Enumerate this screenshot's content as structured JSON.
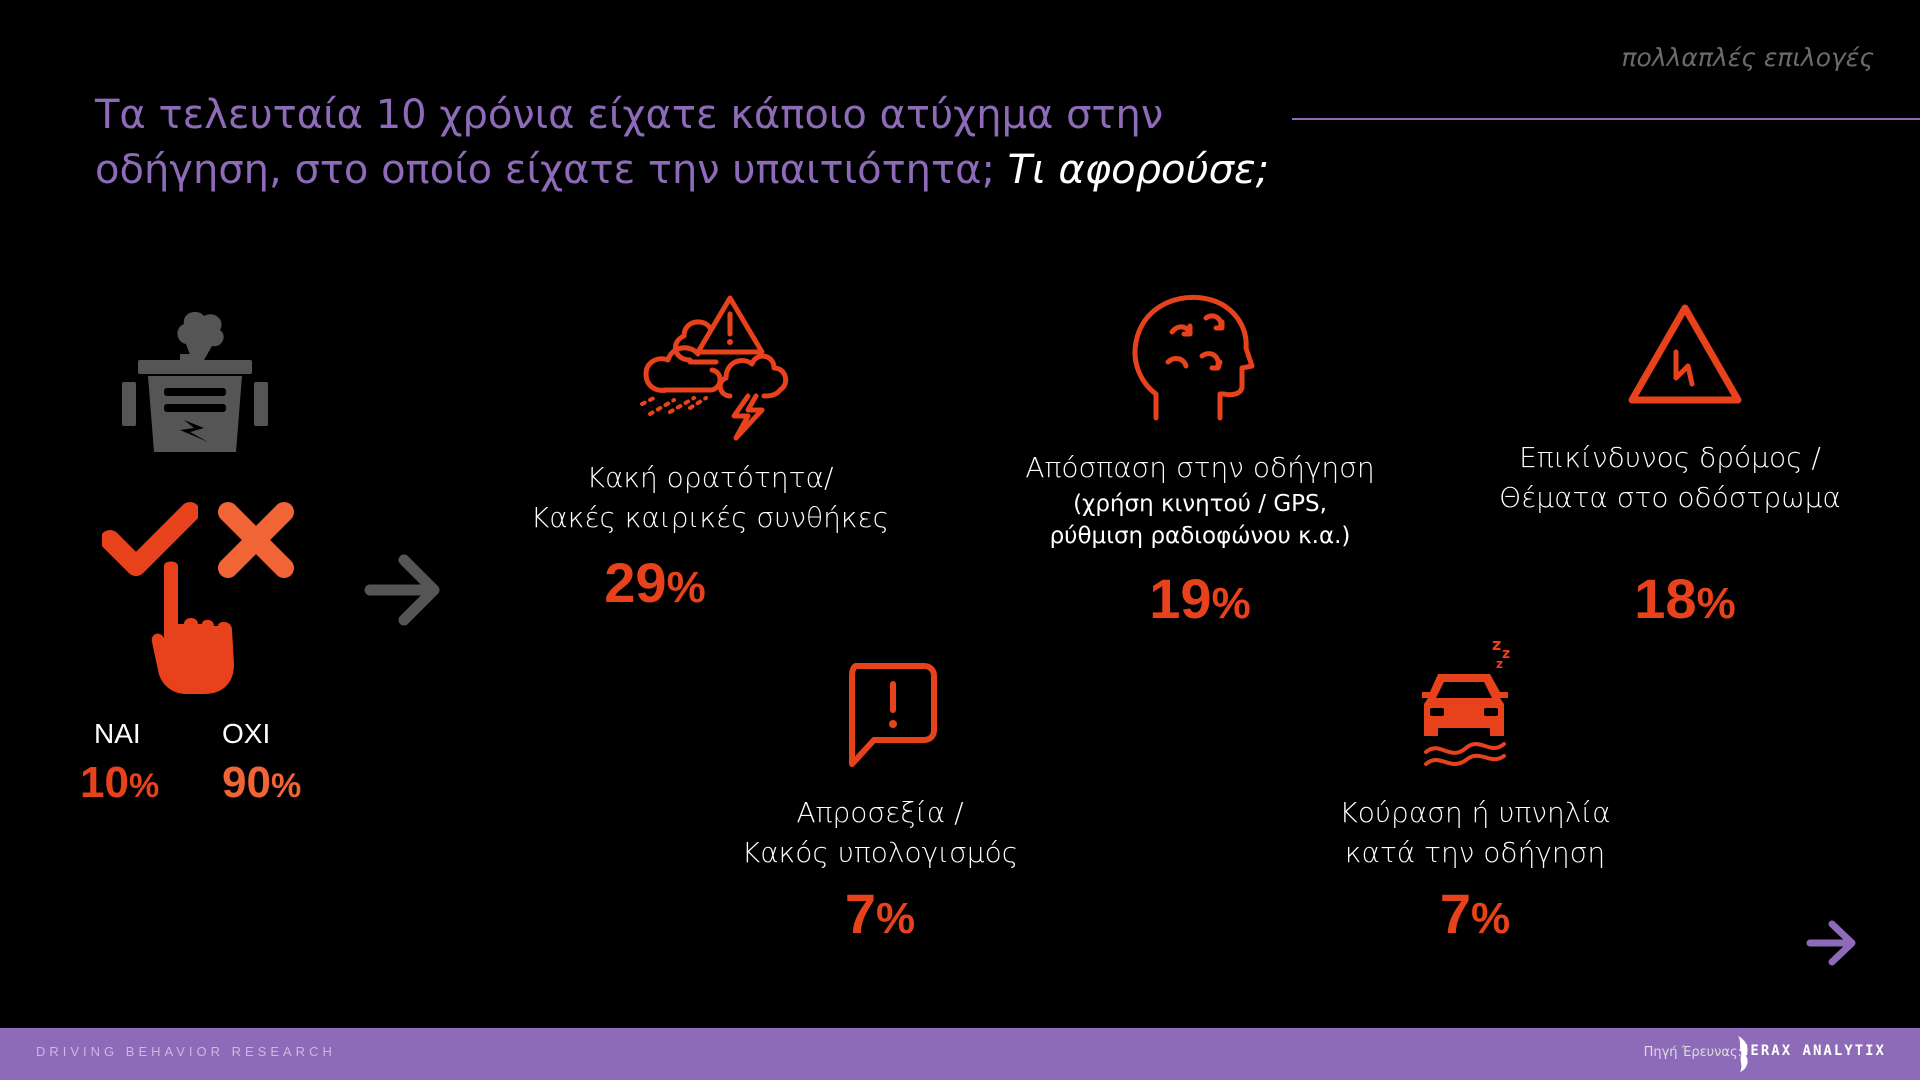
{
  "header": {
    "corner_note": "πολλαπλές επιλογές",
    "title_main": "Τα τελευταία 10 χρόνια είχατε κάποιο ατύχημα στην οδήγηση, στο οποίο είχατε την υπαιτιότητα;",
    "title_sub": "Τι αφορούσε;"
  },
  "answers": {
    "yes_label": "ΝΑΙ",
    "yes_value": "10",
    "no_label": "ΟΧΙ",
    "no_value": "90",
    "percent_sign": "%"
  },
  "categories": [
    {
      "label_line1": "Κακή ορατότητα/",
      "label_line2": "Κακές καιρικές συνθήκες",
      "note_line1": "",
      "note_line2": "",
      "value": "29",
      "icon": "storm-warning-icon"
    },
    {
      "label_line1": "Απόσπαση στην οδήγηση",
      "label_line2": "",
      "note_line1": "(χρήση κινητού / GPS,",
      "note_line2": "ρύθμιση ραδιοφώνου κ.α.)",
      "value": "19",
      "icon": "distracted-head-icon"
    },
    {
      "label_line1": "Επικίνδυνος δρόμος /",
      "label_line2": "Θέματα στο οδόστρωμα",
      "note_line1": "",
      "note_line2": "",
      "value": "18",
      "icon": "hazard-triangle-icon"
    },
    {
      "label_line1": "Απροσεξία /",
      "label_line2": "Κακός υπολογισμός",
      "note_line1": "",
      "note_line2": "",
      "value": "7",
      "icon": "alert-speech-icon"
    },
    {
      "label_line1": "Κούραση ή υπνηλία",
      "label_line2": "κατά την οδήγηση",
      "note_line1": "",
      "note_line2": "",
      "value": "7",
      "icon": "sleepy-car-icon"
    }
  ],
  "footer": {
    "left_text": "DRIVING BEHAVIOR RESEARCH",
    "source_label": "Πηγή Έρευνας:",
    "logo_text": "IERAX ANALYTIX"
  },
  "colors": {
    "accent_purple": "#8d6bb8",
    "accent_orange": "#e8421c",
    "background": "#000000"
  }
}
